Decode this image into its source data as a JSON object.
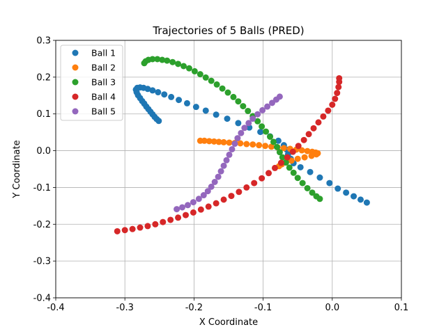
{
  "chart_data": {
    "type": "scatter",
    "title": "Trajectories of 5 Balls (PRED)",
    "xlabel": "X Coordinate",
    "ylabel": "Y Coordinate",
    "xlim": [
      -0.4,
      0.1
    ],
    "ylim": [
      -0.4,
      0.3
    ],
    "xticks": [
      "-0.4",
      "-0.3",
      "-0.2",
      "-0.1",
      "0.0",
      "0.1"
    ],
    "yticks": [
      "-0.4",
      "-0.3",
      "-0.2",
      "-0.1",
      "0.0",
      "0.1",
      "0.2",
      "0.3"
    ],
    "grid": true,
    "legend_position": "top-left",
    "series": [
      {
        "name": "Ball 1",
        "color": "#1f77b4",
        "points": [
          [
            -0.251,
            0.081
          ],
          [
            -0.254,
            0.086
          ],
          [
            -0.257,
            0.092
          ],
          [
            -0.26,
            0.099
          ],
          [
            -0.263,
            0.106
          ],
          [
            -0.266,
            0.113
          ],
          [
            -0.269,
            0.12
          ],
          [
            -0.272,
            0.128
          ],
          [
            -0.275,
            0.135
          ],
          [
            -0.278,
            0.143
          ],
          [
            -0.281,
            0.151
          ],
          [
            -0.283,
            0.159
          ],
          [
            -0.284,
            0.166
          ],
          [
            -0.282,
            0.171
          ],
          [
            -0.278,
            0.172
          ],
          [
            -0.273,
            0.171
          ],
          [
            -0.267,
            0.168
          ],
          [
            -0.26,
            0.164
          ],
          [
            -0.252,
            0.159
          ],
          [
            -0.243,
            0.153
          ],
          [
            -0.233,
            0.146
          ],
          [
            -0.222,
            0.138
          ],
          [
            -0.21,
            0.129
          ],
          [
            -0.197,
            0.119
          ],
          [
            -0.183,
            0.109
          ],
          [
            -0.168,
            0.098
          ],
          [
            -0.152,
            0.087
          ],
          [
            -0.136,
            0.075
          ],
          [
            -0.12,
            0.063
          ],
          [
            -0.104,
            0.051
          ],
          [
            -0.09,
            0.039
          ],
          [
            -0.078,
            0.027
          ],
          [
            -0.07,
            0.015
          ],
          [
            -0.066,
            0.003
          ],
          [
            -0.064,
            -0.01
          ],
          [
            -0.06,
            -0.022
          ],
          [
            -0.056,
            -0.034
          ],
          [
            -0.046,
            -0.045
          ],
          [
            -0.032,
            -0.058
          ],
          [
            -0.018,
            -0.073
          ],
          [
            -0.004,
            -0.088
          ],
          [
            0.008,
            -0.103
          ],
          [
            0.02,
            -0.114
          ],
          [
            0.031,
            -0.124
          ],
          [
            0.041,
            -0.133
          ],
          [
            0.05,
            -0.141
          ]
        ]
      },
      {
        "name": "Ball 2",
        "color": "#ff7f0e",
        "points": [
          [
            -0.191,
            0.027
          ],
          [
            -0.185,
            0.027
          ],
          [
            -0.178,
            0.026
          ],
          [
            -0.171,
            0.025
          ],
          [
            -0.164,
            0.024
          ],
          [
            -0.157,
            0.023
          ],
          [
            -0.149,
            0.022
          ],
          [
            -0.141,
            0.021
          ],
          [
            -0.133,
            0.02
          ],
          [
            -0.124,
            0.018
          ],
          [
            -0.115,
            0.017
          ],
          [
            -0.106,
            0.015
          ],
          [
            -0.097,
            0.013
          ],
          [
            -0.088,
            0.011
          ],
          [
            -0.079,
            0.009
          ],
          [
            -0.07,
            0.007
          ],
          [
            -0.061,
            0.005
          ],
          [
            -0.052,
            0.003
          ],
          [
            -0.044,
            0.001
          ],
          [
            -0.036,
            -0.001
          ],
          [
            -0.029,
            -0.003
          ],
          [
            -0.024,
            -0.005
          ],
          [
            -0.021,
            -0.007
          ],
          [
            -0.023,
            -0.01
          ],
          [
            -0.03,
            -0.014
          ],
          [
            -0.04,
            -0.018
          ],
          [
            -0.05,
            -0.022
          ],
          [
            -0.059,
            -0.027
          ],
          [
            -0.067,
            -0.032
          ],
          [
            -0.073,
            -0.037
          ],
          [
            -0.077,
            -0.042
          ]
        ]
      },
      {
        "name": "Ball 3",
        "color": "#2ca02c",
        "points": [
          [
            -0.272,
            0.238
          ],
          [
            -0.27,
            0.243
          ],
          [
            -0.266,
            0.247
          ],
          [
            -0.26,
            0.249
          ],
          [
            -0.253,
            0.249
          ],
          [
            -0.246,
            0.247
          ],
          [
            -0.239,
            0.245
          ],
          [
            -0.231,
            0.241
          ],
          [
            -0.223,
            0.236
          ],
          [
            -0.215,
            0.23
          ],
          [
            -0.207,
            0.224
          ],
          [
            -0.199,
            0.216
          ],
          [
            -0.191,
            0.208
          ],
          [
            -0.183,
            0.199
          ],
          [
            -0.175,
            0.19
          ],
          [
            -0.167,
            0.18
          ],
          [
            -0.159,
            0.169
          ],
          [
            -0.151,
            0.158
          ],
          [
            -0.143,
            0.146
          ],
          [
            -0.136,
            0.134
          ],
          [
            -0.129,
            0.121
          ],
          [
            -0.122,
            0.108
          ],
          [
            -0.115,
            0.094
          ],
          [
            -0.108,
            0.08
          ],
          [
            -0.102,
            0.066
          ],
          [
            -0.096,
            0.052
          ],
          [
            -0.09,
            0.038
          ],
          [
            -0.085,
            0.024
          ],
          [
            -0.08,
            0.01
          ],
          [
            -0.076,
            -0.004
          ],
          [
            -0.072,
            -0.018
          ],
          [
            -0.067,
            -0.032
          ],
          [
            -0.062,
            -0.046
          ],
          [
            -0.056,
            -0.06
          ],
          [
            -0.05,
            -0.074
          ],
          [
            -0.043,
            -0.088
          ],
          [
            -0.036,
            -0.102
          ],
          [
            -0.029,
            -0.114
          ],
          [
            -0.023,
            -0.124
          ],
          [
            -0.018,
            -0.131
          ]
        ]
      },
      {
        "name": "Ball 4",
        "color": "#d62728",
        "points": [
          [
            -0.311,
            -0.219
          ],
          [
            -0.3,
            -0.216
          ],
          [
            -0.289,
            -0.213
          ],
          [
            -0.278,
            -0.209
          ],
          [
            -0.267,
            -0.205
          ],
          [
            -0.256,
            -0.2
          ],
          [
            -0.245,
            -0.194
          ],
          [
            -0.234,
            -0.188
          ],
          [
            -0.223,
            -0.182
          ],
          [
            -0.212,
            -0.175
          ],
          [
            -0.201,
            -0.168
          ],
          [
            -0.19,
            -0.16
          ],
          [
            -0.179,
            -0.152
          ],
          [
            -0.168,
            -0.143
          ],
          [
            -0.157,
            -0.133
          ],
          [
            -0.146,
            -0.123
          ],
          [
            -0.135,
            -0.112
          ],
          [
            -0.124,
            -0.1
          ],
          [
            -0.113,
            -0.088
          ],
          [
            -0.102,
            -0.075
          ],
          [
            -0.092,
            -0.061
          ],
          [
            -0.083,
            -0.047
          ],
          [
            -0.074,
            -0.033
          ],
          [
            -0.065,
            -0.018
          ],
          [
            -0.057,
            -0.003
          ],
          [
            -0.049,
            0.013
          ],
          [
            -0.041,
            0.029
          ],
          [
            -0.034,
            0.045
          ],
          [
            -0.027,
            0.061
          ],
          [
            -0.02,
            0.077
          ],
          [
            -0.013,
            0.093
          ],
          [
            -0.006,
            0.109
          ],
          [
            0.0,
            0.125
          ],
          [
            0.004,
            0.141
          ],
          [
            0.007,
            0.157
          ],
          [
            0.009,
            0.173
          ],
          [
            0.01,
            0.187
          ],
          [
            0.01,
            0.197
          ]
        ]
      },
      {
        "name": "Ball 5",
        "color": "#9467bd",
        "points": [
          [
            -0.225,
            -0.159
          ],
          [
            -0.217,
            -0.154
          ],
          [
            -0.209,
            -0.148
          ],
          [
            -0.201,
            -0.14
          ],
          [
            -0.193,
            -0.131
          ],
          [
            -0.186,
            -0.121
          ],
          [
            -0.18,
            -0.11
          ],
          [
            -0.175,
            -0.098
          ],
          [
            -0.17,
            -0.085
          ],
          [
            -0.165,
            -0.071
          ],
          [
            -0.161,
            -0.056
          ],
          [
            -0.157,
            -0.041
          ],
          [
            -0.153,
            -0.026
          ],
          [
            -0.149,
            -0.011
          ],
          [
            -0.145,
            0.004
          ],
          [
            -0.141,
            0.019
          ],
          [
            -0.137,
            0.034
          ],
          [
            -0.132,
            0.048
          ],
          [
            -0.127,
            0.062
          ],
          [
            -0.121,
            0.075
          ],
          [
            -0.115,
            0.087
          ],
          [
            -0.108,
            0.099
          ],
          [
            -0.101,
            0.11
          ],
          [
            -0.094,
            0.12
          ],
          [
            -0.087,
            0.13
          ],
          [
            -0.081,
            0.139
          ],
          [
            -0.076,
            0.147
          ]
        ]
      }
    ]
  }
}
